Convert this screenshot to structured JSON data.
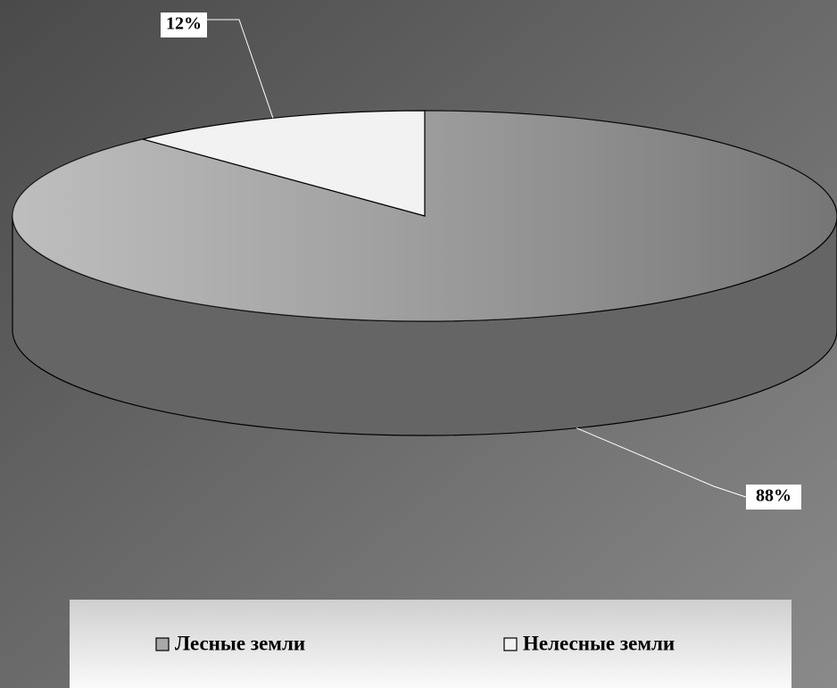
{
  "chart_data": {
    "type": "pie",
    "categories": [
      "Лесные земли",
      "Нелесные земли"
    ],
    "values": [
      88,
      12
    ],
    "value_labels": [
      "88%",
      "12%"
    ],
    "colors": [
      "#a8a8a8",
      "#f2f2f2"
    ],
    "legend": "bottom"
  }
}
